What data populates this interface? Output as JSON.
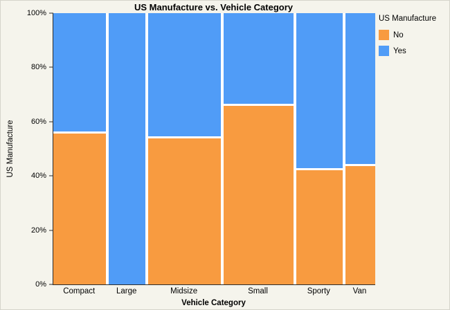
{
  "title": "US Manufacture vs. Vehicle Category",
  "x_axis": {
    "label": "Vehicle Category"
  },
  "y_axis": {
    "label": "US Manufacture",
    "ticks": [
      "0%",
      "20%",
      "40%",
      "60%",
      "80%",
      "100%"
    ]
  },
  "legend": {
    "title": "US Manufacture",
    "items": [
      {
        "label": "No",
        "color": "#f89b40"
      },
      {
        "label": "Yes",
        "color": "#509cf7"
      }
    ]
  },
  "colors": {
    "no": "#f89b40",
    "yes": "#509cf7",
    "background": "#f5f4ec",
    "plot_background": "#ffffff"
  },
  "chart_data": {
    "type": "mosaic",
    "title": "US Manufacture vs. Vehicle Category",
    "xlabel": "Vehicle Category",
    "ylabel": "US Manufacture",
    "categories": [
      "Compact",
      "Large",
      "Midsize",
      "Small",
      "Sporty",
      "Van"
    ],
    "column_width_pct": [
      17.2,
      11.8,
      23.7,
      22.6,
      15.1,
      9.7
    ],
    "series": [
      {
        "name": "No",
        "color": "#f89b40",
        "values": [
          56.3,
          0.0,
          54.5,
          66.7,
          42.9,
          44.4
        ]
      },
      {
        "name": "Yes",
        "color": "#509cf7",
        "values": [
          43.7,
          100.0,
          45.5,
          33.3,
          57.1,
          55.6
        ]
      }
    ],
    "ylim": [
      0,
      100
    ],
    "y_tick_percent": [
      0,
      20,
      40,
      60,
      80,
      100
    ],
    "legend_position": "right",
    "grid": false
  }
}
